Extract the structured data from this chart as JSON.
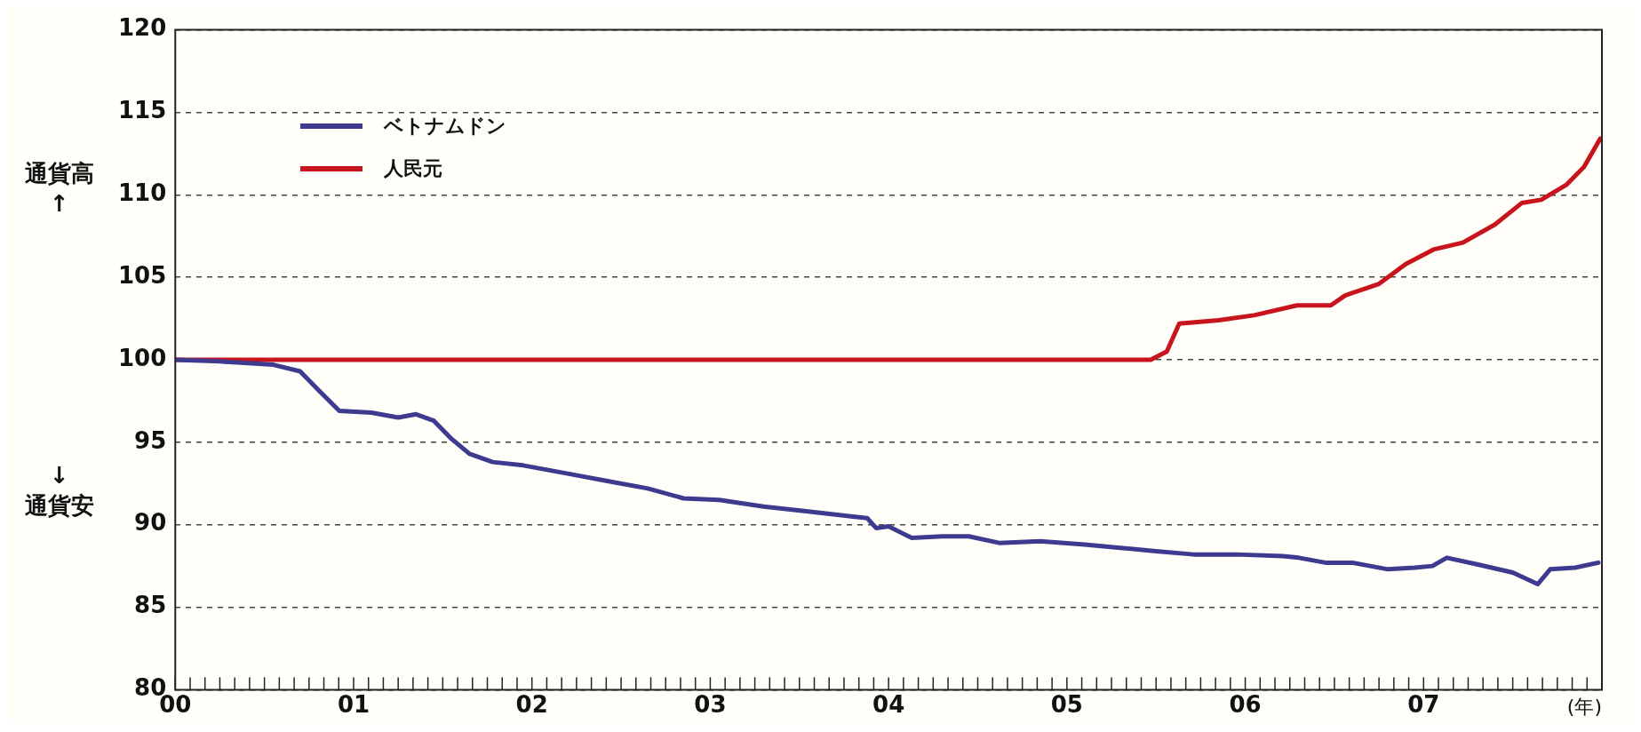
{
  "chart_data": {
    "type": "line",
    "xlabel": "(年)",
    "annotations": [
      "通貨高\n↑",
      "↓\n通貨安"
    ],
    "xlim": [
      0,
      8
    ],
    "xticks": [
      {
        "value": 0,
        "label": "00"
      },
      {
        "value": 1,
        "label": "01"
      },
      {
        "value": 2,
        "label": "02"
      },
      {
        "value": 3,
        "label": "03"
      },
      {
        "value": 4,
        "label": "04"
      },
      {
        "value": 5,
        "label": "05"
      },
      {
        "value": 6,
        "label": "06"
      },
      {
        "value": 7,
        "label": "07"
      },
      {
        "value": 8,
        "label": null
      }
    ],
    "ylim": [
      80,
      120
    ],
    "yticks": [
      80,
      85,
      90,
      95,
      100,
      105,
      110,
      115,
      120
    ],
    "grid": "y",
    "legend": "top left",
    "marker": "none",
    "line_style": "solid",
    "series": [
      {
        "name": "ベトナムドン",
        "color": "#3d3a8f",
        "x": [
          0,
          0.25,
          0.55,
          0.7,
          0.8,
          0.92,
          1.1,
          1.25,
          1.35,
          1.45,
          1.55,
          1.65,
          1.78,
          1.95,
          2.2,
          2.45,
          2.65,
          2.85,
          3.05,
          3.3,
          3.55,
          3.8,
          3.88,
          3.93,
          4.0,
          4.13,
          4.3,
          4.45,
          4.62,
          4.85,
          5.1,
          5.3,
          5.5,
          5.71,
          5.95,
          6.21,
          6.3,
          6.45,
          6.6,
          6.8,
          6.95,
          7.05,
          7.13,
          7.3,
          7.5,
          7.64,
          7.71,
          7.85,
          7.98
        ],
        "values": [
          100,
          99.9,
          99.7,
          99.3,
          98.2,
          96.9,
          96.8,
          96.5,
          96.7,
          96.3,
          95.2,
          94.3,
          93.8,
          93.6,
          93.1,
          92.6,
          92.2,
          91.6,
          91.5,
          91.1,
          90.8,
          90.5,
          90.4,
          89.8,
          89.9,
          89.2,
          89.3,
          89.3,
          88.9,
          89.0,
          88.8,
          88.6,
          88.4,
          88.2,
          88.2,
          88.1,
          88.0,
          87.7,
          87.7,
          87.3,
          87.4,
          87.5,
          88.0,
          87.6,
          87.1,
          86.4,
          87.3,
          87.4,
          87.7
        ]
      },
      {
        "name": "人民元",
        "color": "#c8141c",
        "x": [
          0,
          5.47,
          5.56,
          5.63,
          5.85,
          6.05,
          6.29,
          6.48,
          6.56,
          6.75,
          6.9,
          7.06,
          7.22,
          7.4,
          7.55,
          7.66,
          7.8,
          7.9,
          7.99
        ],
        "values": [
          100,
          100,
          100.5,
          102.2,
          102.4,
          102.7,
          103.3,
          103.3,
          103.9,
          104.6,
          105.8,
          106.7,
          107.1,
          108.2,
          109.5,
          109.7,
          110.6,
          111.7,
          113.4
        ]
      }
    ]
  }
}
